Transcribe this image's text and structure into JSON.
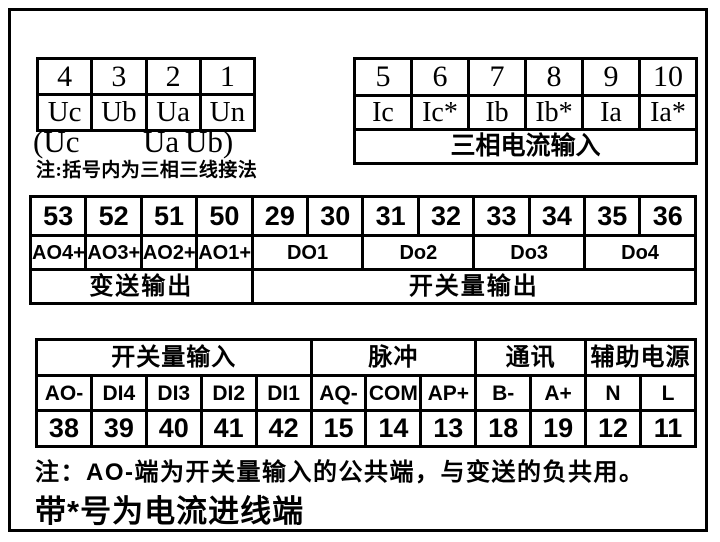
{
  "voltage_table": {
    "terminals": [
      "4",
      "3",
      "2",
      "1"
    ],
    "labels": [
      "Uc",
      "Ub",
      "Ua",
      "Un"
    ],
    "three_wire_bracket": {
      "open": "(Uc",
      "mid": "Ua",
      "close": "Ub)"
    },
    "note": "注:括号内为三相三线接法"
  },
  "current_table": {
    "terminals": [
      "5",
      "6",
      "7",
      "8",
      "9",
      "10"
    ],
    "labels": [
      "Ic",
      "Ic*",
      "Ib",
      "Ib*",
      "Ia",
      "Ia*"
    ],
    "group": "三相电流输入"
  },
  "output_table": {
    "terminals": [
      "53",
      "52",
      "51",
      "50",
      "29",
      "30",
      "31",
      "32",
      "33",
      "34",
      "35",
      "36"
    ],
    "labels": [
      "AO4+",
      "AO3+",
      "AO2+",
      "AO1+",
      "DO1",
      "Do2",
      "Do3",
      "Do4"
    ],
    "groups": [
      "变送输出",
      "开关量输出"
    ]
  },
  "input_table": {
    "groups": [
      "开关量输入",
      "脉冲",
      "通讯",
      "辅助电源"
    ],
    "labels": [
      "AO-",
      "DI4",
      "DI3",
      "DI2",
      "DI1",
      "AQ-",
      "COM",
      "AP+",
      "B-",
      "A+",
      "N",
      "L"
    ],
    "terminals": [
      "38",
      "39",
      "40",
      "41",
      "42",
      "15",
      "14",
      "13",
      "18",
      "19",
      "12",
      "11"
    ]
  },
  "notes": {
    "note1": "注：AO-端为开关量输入的公共端，与变送的负共用。",
    "note2": "带*号为电流进线端"
  },
  "colors": {
    "line": "#000000",
    "background": "#ffffff"
  }
}
